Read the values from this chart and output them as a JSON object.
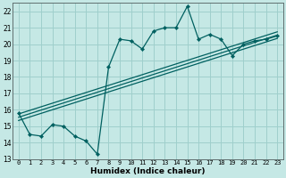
{
  "title": "",
  "xlabel": "Humidex (Indice chaleur)",
  "xlim": [
    -0.5,
    23.5
  ],
  "ylim": [
    13,
    22.5
  ],
  "yticks": [
    13,
    14,
    15,
    16,
    17,
    18,
    19,
    20,
    21,
    22
  ],
  "xticks": [
    0,
    1,
    2,
    3,
    4,
    5,
    6,
    7,
    8,
    9,
    10,
    11,
    12,
    13,
    14,
    15,
    16,
    17,
    18,
    19,
    20,
    21,
    22,
    23
  ],
  "bg_color": "#c5e8e5",
  "line_color": "#006060",
  "grid_color": "#9fcfcc",
  "noisy_x": [
    0,
    1,
    2,
    3,
    4,
    5,
    6,
    7,
    8,
    9,
    10,
    11,
    12,
    13,
    14,
    15,
    16,
    17,
    18,
    19,
    20,
    21,
    22,
    23
  ],
  "noisy_y": [
    15.8,
    14.5,
    14.4,
    15.1,
    15.0,
    14.4,
    14.1,
    13.3,
    18.6,
    20.3,
    20.2,
    19.7,
    20.8,
    21.0,
    21.0,
    22.3,
    20.3,
    20.6,
    20.3,
    19.3,
    20.0,
    20.2,
    20.3,
    20.5
  ],
  "reg_lines": [
    {
      "x": [
        0,
        23
      ],
      "y": [
        15.55,
        20.55
      ]
    },
    {
      "x": [
        0,
        23
      ],
      "y": [
        15.35,
        20.35
      ]
    },
    {
      "x": [
        0,
        23
      ],
      "y": [
        15.75,
        20.75
      ]
    }
  ]
}
